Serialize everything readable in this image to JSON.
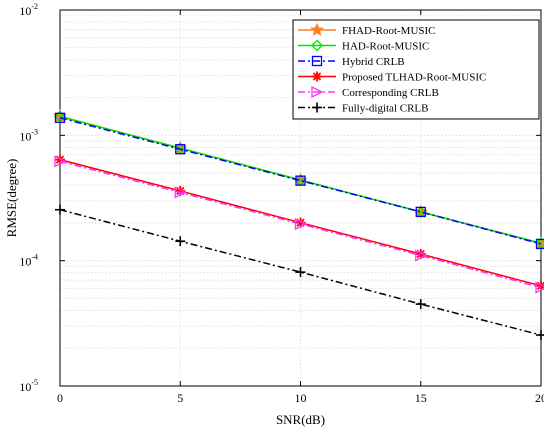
{
  "chart_data": {
    "type": "line",
    "xlabel": "SNR(dB)",
    "ylabel": "RMSE(degree)",
    "xlim": [
      0,
      20
    ],
    "ylim": [
      1e-05,
      0.01
    ],
    "yscale": "log",
    "grid": true,
    "legend_position": "top-right",
    "x_ticks": [
      "0",
      "5",
      "10",
      "15",
      "20"
    ],
    "y_ticks": [
      {
        "base": "10",
        "exp": "-5"
      },
      {
        "base": "10",
        "exp": "-4"
      },
      {
        "base": "10",
        "exp": "-3"
      },
      {
        "base": "10",
        "exp": "-2"
      }
    ],
    "x": [
      0,
      5,
      10,
      15,
      20
    ],
    "series": [
      {
        "name": "FHAD-Root-MUSIC",
        "values": [
          0.00142,
          0.00079,
          0.00044,
          0.000245,
          0.000137
        ],
        "color": "#ff7f27",
        "marker": "star",
        "dash": "solid"
      },
      {
        "name": "HAD-Root-MUSIC",
        "values": [
          0.00141,
          0.00079,
          0.00044,
          0.000245,
          0.000138
        ],
        "color": "#00e600",
        "marker": "diamond",
        "dash": "solid"
      },
      {
        "name": "Hybrid CRLB",
        "values": [
          0.00138,
          0.000775,
          0.000435,
          0.000245,
          0.000136
        ],
        "color": "#0000ff",
        "marker": "square",
        "dash": "dashdot"
      },
      {
        "name": "Proposed TLHAD-Root-MUSIC",
        "values": [
          0.00064,
          0.00036,
          0.000201,
          0.000113,
          6.3e-05
        ],
        "color": "#ff0000",
        "marker": "asterisk",
        "dash": "solid"
      },
      {
        "name": "Corresponding CRLB",
        "values": [
          0.00062,
          0.00035,
          0.000196,
          0.00011,
          6.1e-05
        ],
        "color": "#ff33ff",
        "marker": "triangle-right",
        "dash": "dashdot"
      },
      {
        "name": "Fully-digital CRLB",
        "values": [
          0.000255,
          0.000143,
          8.1e-05,
          4.5e-05,
          2.55e-05
        ],
        "color": "#000000",
        "marker": "plus",
        "dash": "dashdot"
      }
    ]
  }
}
